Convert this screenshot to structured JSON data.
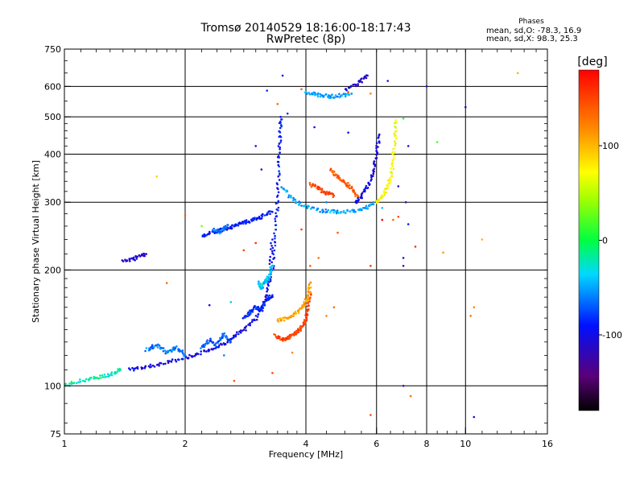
{
  "chart_data": {
    "type": "scatter",
    "title": "Tromsø 20140529 18:16:00-18:17:43",
    "subtitle": "RwPretec (8p)",
    "xlabel": "Frequency [MHz]",
    "ylabel": "Stationary phase Virtual Height [km]",
    "x_scale": "log",
    "y_scale": "log",
    "xlim": [
      1,
      16
    ],
    "ylim": [
      75,
      750
    ],
    "x_ticks": [
      "1",
      "2",
      "4",
      "6",
      "8",
      "10",
      "16"
    ],
    "y_ticks": [
      "750",
      "600",
      "500",
      "400",
      "300",
      "200",
      "100",
      "75"
    ],
    "grid": true,
    "phases": {
      "heading": "Phases",
      "o_stat": "mean, sd,O:  -78.3, 16.9",
      "x_stat": "mean, sd,X:  98.3, 25.3"
    },
    "colorbar": {
      "label": "[deg]",
      "range": [
        -180,
        180
      ],
      "ticks": [
        "100",
        "0",
        "-100"
      ]
    },
    "traces": [
      {
        "x": [
          1.0,
          1.1,
          1.2,
          1.3,
          1.38
        ],
        "y": [
          100,
          103,
          105,
          107,
          110
        ],
        "phase": -20
      },
      {
        "x": [
          1.45,
          1.6,
          1.8,
          2.0,
          2.2,
          2.4,
          2.6,
          2.8,
          3.0,
          3.15,
          3.25,
          3.3
        ],
        "y": [
          110,
          112,
          115,
          118,
          122,
          126,
          132,
          140,
          150,
          165,
          190,
          240
        ],
        "phase": -100
      },
      {
        "x": [
          3.3,
          3.35,
          3.4,
          3.42,
          3.45,
          3.46
        ],
        "y": [
          200,
          250,
          300,
          370,
          440,
          500
        ],
        "phase": -90
      },
      {
        "x": [
          3.5,
          3.7,
          4.0,
          4.4,
          4.8,
          5.2,
          5.6,
          5.9
        ],
        "y": [
          330,
          305,
          292,
          285,
          283,
          284,
          288,
          300
        ],
        "phase": -50
      },
      {
        "x": [
          1.6,
          1.7,
          1.8,
          1.9,
          2.0
        ],
        "y": [
          124,
          128,
          122,
          126,
          120
        ],
        "phase": -60
      },
      {
        "x": [
          2.2,
          2.3,
          2.4,
          2.5,
          2.6
        ],
        "y": [
          125,
          132,
          128,
          136,
          130
        ],
        "phase": -70
      },
      {
        "x": [
          2.8,
          2.9,
          3.0,
          3.1,
          3.2,
          3.3
        ],
        "y": [
          150,
          155,
          160,
          158,
          168,
          172
        ],
        "phase": -85
      },
      {
        "x": [
          3.05,
          3.1,
          3.2,
          3.25,
          3.3
        ],
        "y": [
          185,
          180,
          188,
          195,
          205
        ],
        "phase": -40
      },
      {
        "x": [
          2.2,
          2.35,
          2.5,
          2.65,
          2.8,
          2.95,
          3.1,
          3.3
        ],
        "y": [
          245,
          250,
          255,
          260,
          265,
          270,
          275,
          283
        ],
        "phase": -90
      },
      {
        "x": [
          2.35,
          2.45,
          2.55
        ],
        "y": [
          255,
          250,
          262
        ],
        "phase": -60
      },
      {
        "x": [
          1.4,
          1.5,
          1.6
        ],
        "y": [
          210,
          215,
          220
        ],
        "phase": -110
      },
      {
        "x": [
          3.35,
          3.5,
          3.6,
          3.7,
          3.8,
          3.9,
          4.0,
          4.05,
          4.1
        ],
        "y": [
          135,
          132,
          133,
          135,
          138,
          142,
          148,
          158,
          175
        ],
        "phase": 150
      },
      {
        "x": [
          3.4,
          3.6,
          3.8,
          3.95,
          4.05,
          4.1
        ],
        "y": [
          148,
          150,
          155,
          162,
          170,
          185
        ],
        "phase": 110
      },
      {
        "x": [
          4.1,
          4.3,
          4.5,
          4.7
        ],
        "y": [
          335,
          325,
          318,
          312
        ],
        "phase": 150
      },
      {
        "x": [
          4.6,
          4.8,
          5.0,
          5.2,
          5.4
        ],
        "y": [
          365,
          350,
          338,
          325,
          310
        ],
        "phase": 140
      },
      {
        "x": [
          5.3,
          5.5,
          5.7,
          5.9,
          6.0,
          6.1
        ],
        "y": [
          300,
          310,
          330,
          360,
          400,
          450
        ],
        "phase": -105
      },
      {
        "x": [
          6.0,
          6.2,
          6.4,
          6.55,
          6.65,
          6.7
        ],
        "y": [
          300,
          310,
          330,
          360,
          420,
          490
        ],
        "phase": 70
      },
      {
        "x": [
          4.0,
          4.3,
          4.6,
          4.9,
          5.2
        ],
        "y": [
          578,
          570,
          565,
          568,
          575
        ],
        "phase": -50
      },
      {
        "x": [
          5.0,
          5.4,
          5.7
        ],
        "y": [
          590,
          610,
          640
        ],
        "phase": -110
      }
    ],
    "scatter": [
      {
        "x": 1.7,
        "y": 350,
        "phase": 90
      },
      {
        "x": 3.5,
        "y": 640,
        "phase": -90
      },
      {
        "x": 3.2,
        "y": 585,
        "phase": -80
      },
      {
        "x": 3.4,
        "y": 540,
        "phase": 130
      },
      {
        "x": 3.0,
        "y": 420,
        "phase": -100
      },
      {
        "x": 3.1,
        "y": 365,
        "phase": -110
      },
      {
        "x": 3.0,
        "y": 235,
        "phase": 160
      },
      {
        "x": 2.8,
        "y": 225,
        "phase": 150
      },
      {
        "x": 1.8,
        "y": 185,
        "phase": 130
      },
      {
        "x": 2.0,
        "y": 278,
        "phase": 140
      },
      {
        "x": 2.2,
        "y": 260,
        "phase": 30
      },
      {
        "x": 3.9,
        "y": 255,
        "phase": 150
      },
      {
        "x": 4.3,
        "y": 215,
        "phase": 130
      },
      {
        "x": 4.1,
        "y": 205,
        "phase": 140
      },
      {
        "x": 4.8,
        "y": 250,
        "phase": 140
      },
      {
        "x": 5.8,
        "y": 205,
        "phase": 160
      },
      {
        "x": 6.2,
        "y": 270,
        "phase": 180
      },
      {
        "x": 6.6,
        "y": 270,
        "phase": 130
      },
      {
        "x": 6.8,
        "y": 275,
        "phase": 150
      },
      {
        "x": 7.1,
        "y": 300,
        "phase": -110
      },
      {
        "x": 7.2,
        "y": 263,
        "phase": -90
      },
      {
        "x": 7.5,
        "y": 230,
        "phase": 160
      },
      {
        "x": 7.0,
        "y": 215,
        "phase": -100
      },
      {
        "x": 7.0,
        "y": 205,
        "phase": -130
      },
      {
        "x": 8.8,
        "y": 222,
        "phase": 110
      },
      {
        "x": 10.5,
        "y": 160,
        "phase": 120
      },
      {
        "x": 10.3,
        "y": 152,
        "phase": 130
      },
      {
        "x": 11.0,
        "y": 240,
        "phase": 100
      },
      {
        "x": 10.0,
        "y": 530,
        "phase": -110
      },
      {
        "x": 8.0,
        "y": 600,
        "phase": -120
      },
      {
        "x": 6.4,
        "y": 620,
        "phase": -100
      },
      {
        "x": 5.8,
        "y": 575,
        "phase": 120
      },
      {
        "x": 13.5,
        "y": 650,
        "phase": 100
      },
      {
        "x": 7.0,
        "y": 495,
        "phase": 10
      },
      {
        "x": 7.2,
        "y": 420,
        "phase": -100
      },
      {
        "x": 8.5,
        "y": 430,
        "phase": 20
      },
      {
        "x": 7.0,
        "y": 100,
        "phase": -120
      },
      {
        "x": 7.3,
        "y": 94,
        "phase": 130
      },
      {
        "x": 5.8,
        "y": 84,
        "phase": 150
      },
      {
        "x": 10.5,
        "y": 83,
        "phase": -110
      },
      {
        "x": 4.7,
        "y": 160,
        "phase": 130
      },
      {
        "x": 4.5,
        "y": 152,
        "phase": 120
      },
      {
        "x": 3.7,
        "y": 122,
        "phase": 120
      },
      {
        "x": 3.3,
        "y": 108,
        "phase": 150
      },
      {
        "x": 2.5,
        "y": 120,
        "phase": -60
      },
      {
        "x": 2.65,
        "y": 103,
        "phase": 140
      },
      {
        "x": 2.3,
        "y": 162,
        "phase": -100
      },
      {
        "x": 2.6,
        "y": 165,
        "phase": -40
      },
      {
        "x": 3.9,
        "y": 590,
        "phase": 140
      },
      {
        "x": 5.1,
        "y": 580,
        "phase": 150
      },
      {
        "x": 6.8,
        "y": 330,
        "phase": -110
      },
      {
        "x": 4.2,
        "y": 470,
        "phase": -100
      },
      {
        "x": 5.1,
        "y": 455,
        "phase": -90
      },
      {
        "x": 1.5,
        "y": 212,
        "phase": -100
      },
      {
        "x": 6.2,
        "y": 290,
        "phase": -40
      },
      {
        "x": 3.6,
        "y": 510,
        "phase": -80
      },
      {
        "x": 4.5,
        "y": 300,
        "phase": -60
      }
    ]
  }
}
